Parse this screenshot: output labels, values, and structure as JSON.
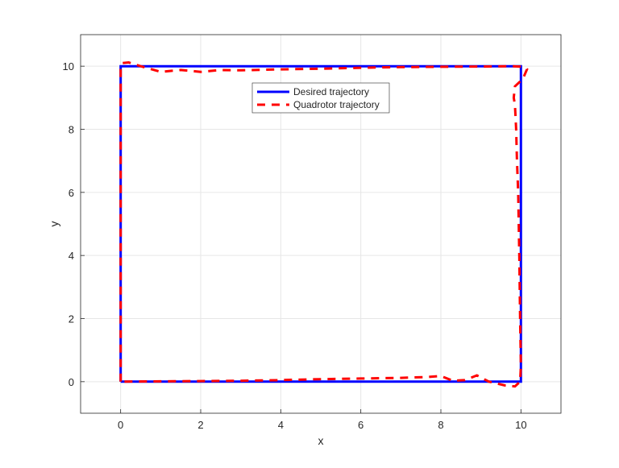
{
  "chart_data": {
    "type": "line",
    "title": "",
    "xlabel": "x",
    "ylabel": "y",
    "xlim": [
      -1,
      11
    ],
    "ylim": [
      -1,
      11
    ],
    "xticks": [
      0,
      2,
      4,
      6,
      8,
      10
    ],
    "yticks": [
      0,
      2,
      4,
      6,
      8,
      10
    ],
    "grid": true,
    "legend_position": "top-center",
    "series": [
      {
        "name": "Desired trajectory",
        "color": "#0000ff",
        "style": "solid",
        "x": [
          0,
          0,
          10,
          10,
          0
        ],
        "y": [
          0,
          10,
          10,
          0,
          0
        ]
      },
      {
        "name": "Quadrotor trajectory",
        "color": "#ff0000",
        "style": "dashed",
        "x": [
          0,
          0,
          0.05,
          0.2,
          0.5,
          1.0,
          1.5,
          2.0,
          2.5,
          3,
          4,
          5,
          6,
          7,
          8,
          9,
          9.8,
          10.05,
          10.15,
          10.05,
          9.85,
          9.82,
          9.85,
          9.88,
          9.9,
          9.93,
          9.96,
          9.98,
          10.0,
          9.98,
          9.85,
          9.6,
          9.2,
          8.9,
          8.6,
          8.3,
          8.0,
          7.66,
          7,
          6,
          5,
          4,
          3,
          2,
          1,
          0
        ],
        "y": [
          0,
          9.9,
          10.1,
          10.12,
          10.0,
          9.82,
          9.88,
          9.82,
          9.88,
          9.87,
          9.9,
          9.92,
          9.95,
          9.97,
          9.98,
          9.99,
          10.0,
          9.98,
          9.9,
          9.6,
          9.36,
          9.0,
          8.77,
          8.0,
          7.0,
          6.0,
          4.0,
          2.0,
          0.5,
          0.0,
          -0.15,
          -0.12,
          0.0,
          0.2,
          0.05,
          0.03,
          0.18,
          0.15,
          0.12,
          0.1,
          0.08,
          0.05,
          0.03,
          0.02,
          0.01,
          0
        ]
      }
    ]
  }
}
